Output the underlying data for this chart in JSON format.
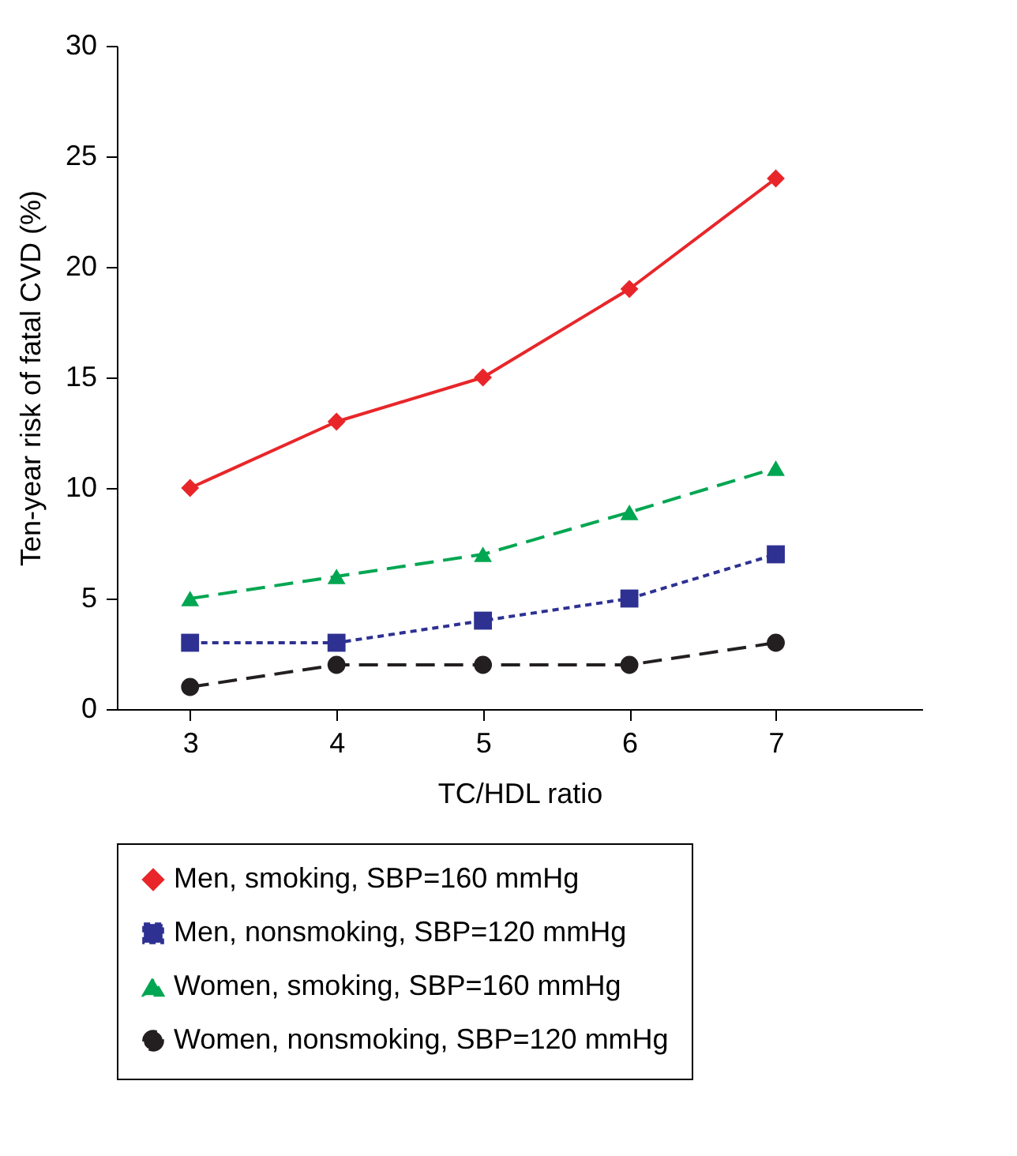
{
  "chart_data": {
    "type": "line",
    "xlabel": "TC/HDL ratio",
    "ylabel": "Ten-year risk of fatal CVD (%)",
    "x": [
      3,
      4,
      5,
      6,
      7
    ],
    "xlim": [
      2.5,
      8
    ],
    "xticks": [
      3,
      4,
      5,
      6,
      7
    ],
    "ylim": [
      0,
      30
    ],
    "yticks": [
      0,
      5,
      10,
      15,
      20,
      25,
      30
    ],
    "grid": false,
    "legend": "bottom",
    "series": [
      {
        "name": "Men, smoking, SBP=160 mmHg",
        "color": "#e8262a",
        "marker": "diamond",
        "line_style": "solid",
        "values": [
          10,
          13,
          15,
          19,
          24
        ]
      },
      {
        "name": "Men, nonsmoking, SBP=120 mmHg",
        "color": "#2e3192",
        "marker": "square",
        "line_style": "dotted",
        "values": [
          3,
          3,
          4,
          5,
          7
        ]
      },
      {
        "name": "Women, smoking, SBP=160 mmHg",
        "color": "#00a651",
        "marker": "triangle",
        "line_style": "dashed",
        "values": [
          5,
          6,
          7,
          8.9,
          10.9
        ]
      },
      {
        "name": "Women, nonsmoking, SBP=120 mmHg",
        "color": "#231f20",
        "marker": "circle",
        "line_style": "dashed",
        "values": [
          1,
          2,
          2,
          2,
          3
        ]
      }
    ]
  }
}
